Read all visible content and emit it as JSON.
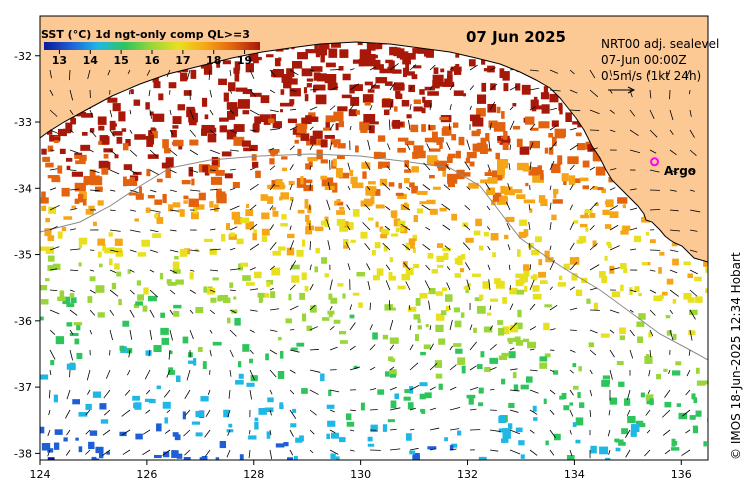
{
  "legend": {
    "title": "SST (°C) 1d ngt-only comp QL>=3",
    "ticks": [
      "13",
      "14",
      "15",
      "16",
      "17",
      "18",
      "19"
    ],
    "colors": [
      "#0a1a9a",
      "#1e5fd6",
      "#1fb8e6",
      "#2ec45c",
      "#9ad63a",
      "#e8e01e",
      "#f5a516",
      "#e2620e",
      "#a81808"
    ]
  },
  "date_label": "07 Jun 2025",
  "vector_info": {
    "line1": "NRT00 adj. sealevel",
    "line2": "07-Jun 00:00Z",
    "line3": "0.5m/s (1kt 24h)"
  },
  "argo": {
    "label": "Argo",
    "color": "#ff00ff",
    "lon": 135.5,
    "lat": -33.6
  },
  "credit": "© IMOS 18-Jun-2025 12:34 Hobart",
  "axes": {
    "x_ticks": [
      "124",
      "126",
      "128",
      "130",
      "132",
      "134",
      "136"
    ],
    "y_ticks": [
      "-32",
      "-33",
      "-34",
      "-35",
      "-36",
      "-37",
      "-38"
    ]
  },
  "chart_data": {
    "type": "heatmap",
    "title": "07 Jun 2025",
    "lon_range": [
      124,
      136.5
    ],
    "lat_range": [
      -38.1,
      -31.4
    ],
    "land_color": "#fcc894",
    "colorbar": {
      "vmin": 12.5,
      "vmax": 19.5,
      "unit": "°C"
    }
  }
}
